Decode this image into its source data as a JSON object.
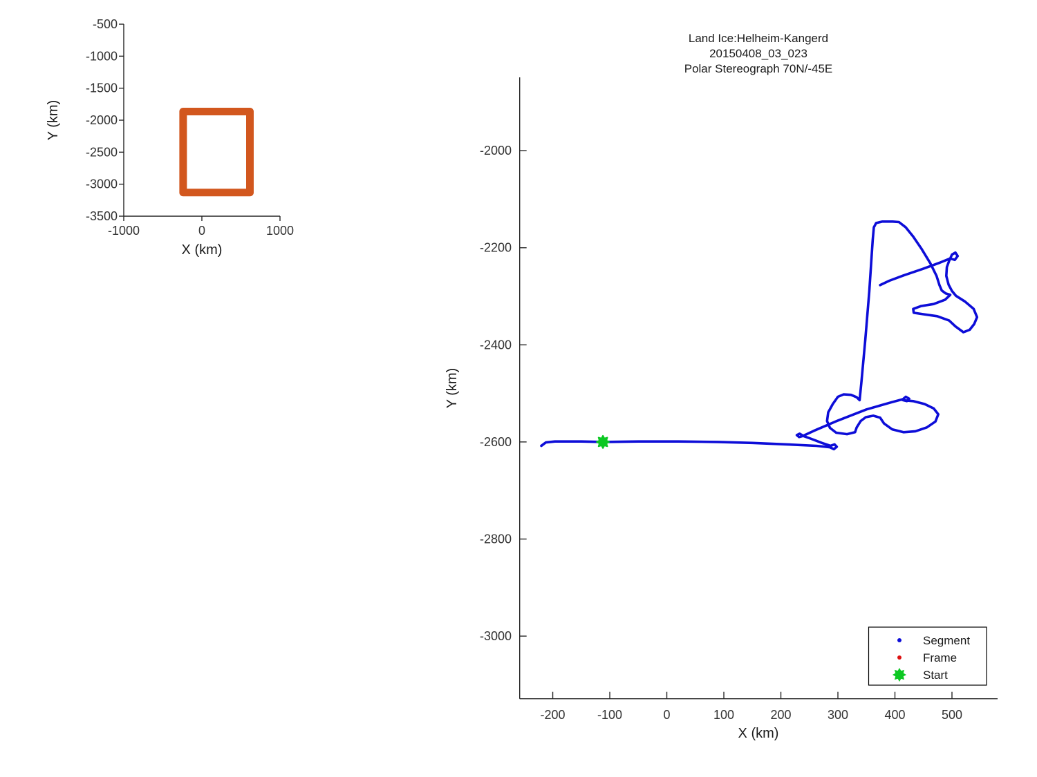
{
  "chart_data": [
    {
      "id": "overview",
      "type": "line",
      "title": "",
      "xlabel": "X (km)",
      "ylabel": "Y (km)",
      "xlim": [
        -1000,
        1000
      ],
      "ylim": [
        -3500,
        -500
      ],
      "xticks": [
        -1000,
        0,
        1000
      ],
      "yticks": [
        -500,
        -1000,
        -1500,
        -2000,
        -2500,
        -3000,
        -3500
      ],
      "grid": false,
      "series": [
        {
          "name": "coverage-box",
          "color": "#d2571e",
          "linewidth": 11,
          "x": [
            -240,
            615,
            615,
            -240,
            -240
          ],
          "y": [
            -1865,
            -1865,
            -3130,
            -3130,
            -1865
          ]
        }
      ]
    },
    {
      "id": "track-map",
      "type": "line",
      "title_lines": [
        "Land Ice:Helheim-Kangerd",
        "20150408_03_023",
        "Polar Stereograph 70N/-45E"
      ],
      "xlabel": "X (km)",
      "ylabel": "Y (km)",
      "xlim": [
        -258,
        580
      ],
      "ylim": [
        -3129,
        -1849
      ],
      "xticks": [
        -200,
        -100,
        0,
        100,
        200,
        300,
        400,
        500
      ],
      "yticks": [
        -2000,
        -2200,
        -2400,
        -2600,
        -2800,
        -3000
      ],
      "grid": false,
      "legend": {
        "position": "bottom-right",
        "items": [
          {
            "label": "Segment",
            "marker": "dot",
            "color": "#0d0dd8"
          },
          {
            "label": "Frame",
            "marker": "dot",
            "color": "#dd1111"
          },
          {
            "label": "Start",
            "marker": "star",
            "color": "#0cc822"
          }
        ]
      },
      "start_point": {
        "x": -112,
        "y": -2600,
        "color": "#0cc822"
      },
      "track": {
        "name": "Segment",
        "color": "#0d0dd8",
        "linewidth": 3.6,
        "points": [
          [
            -220,
            -2608
          ],
          [
            -212,
            -2601
          ],
          [
            -196,
            -2599
          ],
          [
            -150,
            -2599
          ],
          [
            -112,
            -2600
          ],
          [
            -50,
            -2599
          ],
          [
            20,
            -2599
          ],
          [
            90,
            -2600
          ],
          [
            150,
            -2602
          ],
          [
            210,
            -2605
          ],
          [
            262,
            -2608
          ],
          [
            286,
            -2611
          ],
          [
            293,
            -2615
          ],
          [
            298,
            -2610
          ],
          [
            294,
            -2605
          ],
          [
            287,
            -2608
          ],
          [
            272,
            -2602
          ],
          [
            252,
            -2593
          ],
          [
            240,
            -2588
          ],
          [
            233,
            -2583
          ],
          [
            228,
            -2586
          ],
          [
            232,
            -2590
          ],
          [
            238,
            -2588
          ],
          [
            258,
            -2577
          ],
          [
            300,
            -2556
          ],
          [
            350,
            -2533
          ],
          [
            395,
            -2518
          ],
          [
            414,
            -2512
          ],
          [
            419,
            -2507
          ],
          [
            425,
            -2511
          ],
          [
            421,
            -2516
          ],
          [
            414,
            -2514
          ],
          [
            432,
            -2516
          ],
          [
            452,
            -2522
          ],
          [
            468,
            -2531
          ],
          [
            476,
            -2543
          ],
          [
            471,
            -2558
          ],
          [
            456,
            -2570
          ],
          [
            436,
            -2578
          ],
          [
            415,
            -2580
          ],
          [
            395,
            -2574
          ],
          [
            381,
            -2562
          ],
          [
            374,
            -2550
          ],
          [
            362,
            -2546
          ],
          [
            349,
            -2549
          ],
          [
            340,
            -2557
          ],
          [
            333,
            -2570
          ],
          [
            330,
            -2580
          ],
          [
            316,
            -2584
          ],
          [
            297,
            -2581
          ],
          [
            286,
            -2571
          ],
          [
            281,
            -2557
          ],
          [
            283,
            -2539
          ],
          [
            291,
            -2522
          ],
          [
            300,
            -2507
          ],
          [
            310,
            -2502
          ],
          [
            323,
            -2503
          ],
          [
            333,
            -2508
          ],
          [
            338,
            -2514
          ],
          [
            341,
            -2480
          ],
          [
            348,
            -2390
          ],
          [
            355,
            -2290
          ],
          [
            361,
            -2185
          ],
          [
            363,
            -2158
          ],
          [
            367,
            -2149
          ],
          [
            378,
            -2146
          ],
          [
            396,
            -2146
          ],
          [
            407,
            -2147
          ],
          [
            419,
            -2158
          ],
          [
            432,
            -2177
          ],
          [
            447,
            -2203
          ],
          [
            462,
            -2232
          ],
          [
            473,
            -2258
          ],
          [
            478,
            -2277
          ],
          [
            482,
            -2288
          ],
          [
            489,
            -2294
          ],
          [
            497,
            -2297
          ],
          [
            488,
            -2307
          ],
          [
            468,
            -2316
          ],
          [
            446,
            -2320
          ],
          [
            432,
            -2326
          ],
          [
            433,
            -2334
          ],
          [
            450,
            -2337
          ],
          [
            474,
            -2341
          ],
          [
            495,
            -2350
          ],
          [
            506,
            -2362
          ],
          [
            520,
            -2374
          ],
          [
            531,
            -2369
          ],
          [
            539,
            -2357
          ],
          [
            544,
            -2343
          ],
          [
            538,
            -2326
          ],
          [
            523,
            -2311
          ],
          [
            507,
            -2299
          ],
          [
            500,
            -2289
          ],
          [
            494,
            -2276
          ],
          [
            490,
            -2258
          ],
          [
            491,
            -2240
          ],
          [
            495,
            -2227
          ],
          [
            500,
            -2214
          ],
          [
            506,
            -2210
          ],
          [
            510,
            -2217
          ],
          [
            505,
            -2225
          ],
          [
            497,
            -2222
          ],
          [
            478,
            -2231
          ],
          [
            448,
            -2244
          ],
          [
            415,
            -2257
          ],
          [
            390,
            -2268
          ],
          [
            374,
            -2277
          ]
        ]
      }
    }
  ]
}
